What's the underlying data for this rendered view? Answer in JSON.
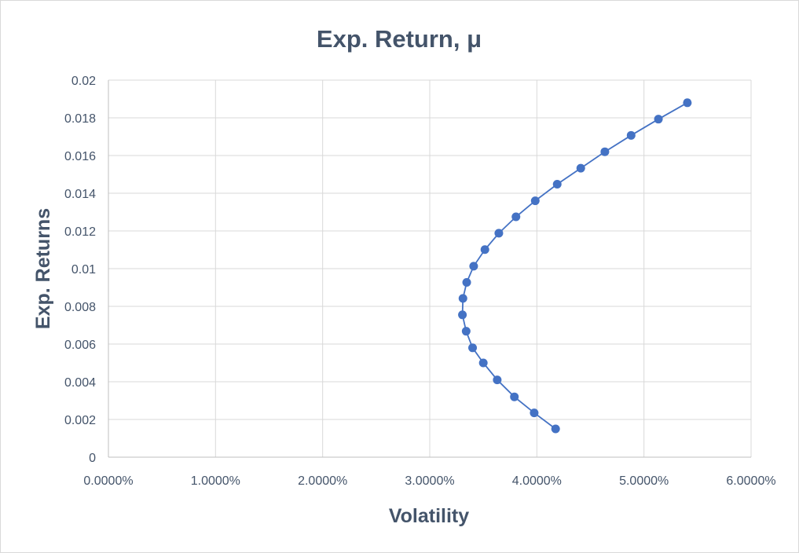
{
  "chart_data": {
    "type": "scatter",
    "title": "Exp. Return, μ",
    "xlabel": "Volatility",
    "ylabel": "Exp. Returns",
    "xlim": [
      0,
      0.06
    ],
    "ylim": [
      0,
      0.02
    ],
    "x_ticks": [
      {
        "value": 0.0,
        "label": "0.0000%"
      },
      {
        "value": 0.01,
        "label": "1.0000%"
      },
      {
        "value": 0.02,
        "label": "2.0000%"
      },
      {
        "value": 0.03,
        "label": "3.0000%"
      },
      {
        "value": 0.04,
        "label": "4.0000%"
      },
      {
        "value": 0.05,
        "label": "5.0000%"
      },
      {
        "value": 0.06,
        "label": "6.0000%"
      }
    ],
    "y_ticks": [
      {
        "value": 0,
        "label": "0"
      },
      {
        "value": 0.002,
        "label": "0.002"
      },
      {
        "value": 0.004,
        "label": "0.004"
      },
      {
        "value": 0.006,
        "label": "0.006"
      },
      {
        "value": 0.008,
        "label": "0.008"
      },
      {
        "value": 0.01,
        "label": "0.01"
      },
      {
        "value": 0.012,
        "label": "0.012"
      },
      {
        "value": 0.014,
        "label": "0.014"
      },
      {
        "value": 0.016,
        "label": "0.016"
      },
      {
        "value": 0.018,
        "label": "0.018"
      },
      {
        "value": 0.02,
        "label": "0.02"
      }
    ],
    "grid": true,
    "legend": "none",
    "series": [
      {
        "color": "#4472c4",
        "markers": true,
        "connected": true,
        "points": [
          {
            "x": 0.04175,
            "y": 0.0015
          },
          {
            "x": 0.03975,
            "y": 0.00235
          },
          {
            "x": 0.0379,
            "y": 0.0032
          },
          {
            "x": 0.0363,
            "y": 0.0041
          },
          {
            "x": 0.035,
            "y": 0.005
          },
          {
            "x": 0.034,
            "y": 0.0058
          },
          {
            "x": 0.0334,
            "y": 0.00668
          },
          {
            "x": 0.03305,
            "y": 0.00755
          },
          {
            "x": 0.0331,
            "y": 0.00842
          },
          {
            "x": 0.03345,
            "y": 0.00927
          },
          {
            "x": 0.0341,
            "y": 0.01013
          },
          {
            "x": 0.03515,
            "y": 0.01101
          },
          {
            "x": 0.03645,
            "y": 0.01188
          },
          {
            "x": 0.03805,
            "y": 0.01275
          },
          {
            "x": 0.03985,
            "y": 0.0136
          },
          {
            "x": 0.0419,
            "y": 0.01448
          },
          {
            "x": 0.0441,
            "y": 0.01533
          },
          {
            "x": 0.04635,
            "y": 0.0162
          },
          {
            "x": 0.0488,
            "y": 0.01707
          },
          {
            "x": 0.05135,
            "y": 0.01793
          },
          {
            "x": 0.05405,
            "y": 0.0188
          }
        ]
      }
    ]
  }
}
